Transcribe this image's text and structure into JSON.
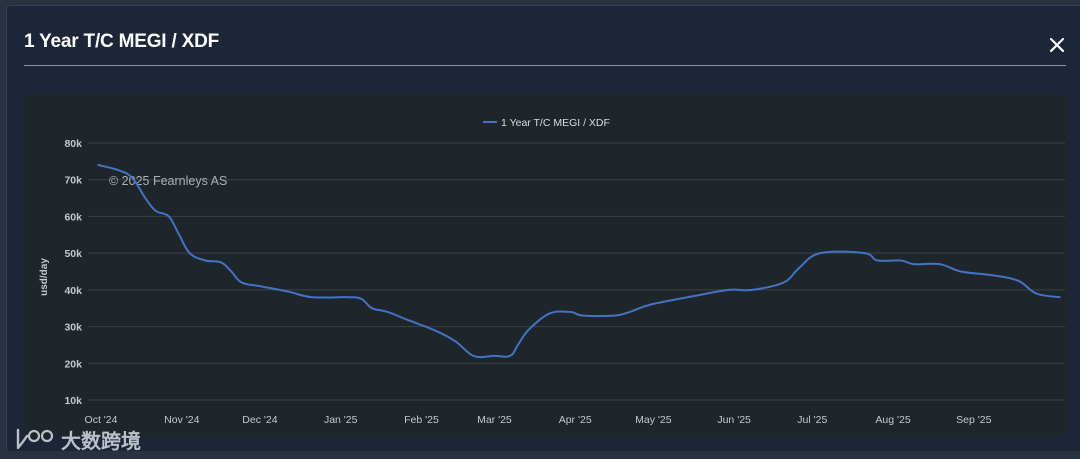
{
  "dialog": {
    "title": "1 Year T/C MEGI / XDF",
    "close_icon": "close-icon"
  },
  "watermark": {
    "brand_text": "大数跨境"
  },
  "colors": {
    "series": "#4472c4",
    "grid": "#3b4148",
    "axis_text": "#c3c8cf",
    "panel_bg": "#1f262b"
  },
  "chart_data": {
    "type": "line",
    "title": "",
    "ylabel": "usd/day",
    "xlabel": "",
    "credit": "© 2025 Fearnleys AS",
    "ylim": [
      10000,
      80000
    ],
    "yticks": [
      10000,
      20000,
      30000,
      40000,
      50000,
      60000,
      70000,
      80000
    ],
    "ytick_labels": [
      "10k",
      "20k",
      "30k",
      "40k",
      "50k",
      "60k",
      "70k",
      "80k"
    ],
    "x_range": [
      "2024-09-26",
      "2025-10-06"
    ],
    "xticks": [
      "2024-10-01",
      "2024-11-01",
      "2024-12-01",
      "2025-01-01",
      "2025-02-01",
      "2025-03-01",
      "2025-04-01",
      "2025-05-01",
      "2025-06-01",
      "2025-07-01",
      "2025-08-01",
      "2025-09-01"
    ],
    "xtick_labels": [
      "Oct '24",
      "Nov '24",
      "Dec '24",
      "Jan '25",
      "Feb '25",
      "Mar '25",
      "Apr '25",
      "May '25",
      "Jun '25",
      "Jul '25",
      "Aug '25",
      "Sep '25"
    ],
    "grid": true,
    "legend": "top-center",
    "series": [
      {
        "name": "1 Year T/C MEGI / XDF",
        "color": "#4472c4",
        "points": [
          [
            "2024-09-30",
            74000
          ],
          [
            "2024-10-08",
            72500
          ],
          [
            "2024-10-13",
            70500
          ],
          [
            "2024-10-18",
            65000
          ],
          [
            "2024-10-22",
            61500
          ],
          [
            "2024-10-27",
            60000
          ],
          [
            "2024-10-31",
            55000
          ],
          [
            "2024-11-04",
            50000
          ],
          [
            "2024-11-10",
            48000
          ],
          [
            "2024-11-16",
            47500
          ],
          [
            "2024-11-20",
            45000
          ],
          [
            "2024-11-24",
            42000
          ],
          [
            "2024-12-01",
            41000
          ],
          [
            "2024-12-12",
            39500
          ],
          [
            "2024-12-21",
            38000
          ],
          [
            "2025-01-04",
            38000
          ],
          [
            "2025-01-09",
            37500
          ],
          [
            "2025-01-13",
            35000
          ],
          [
            "2025-01-19",
            34000
          ],
          [
            "2025-01-26",
            32000
          ],
          [
            "2025-02-06",
            29000
          ],
          [
            "2025-02-14",
            26000
          ],
          [
            "2025-02-21",
            22000
          ],
          [
            "2025-03-01",
            22000
          ],
          [
            "2025-03-07",
            22000
          ],
          [
            "2025-03-10",
            25000
          ],
          [
            "2025-03-14",
            29000
          ],
          [
            "2025-03-22",
            33500
          ],
          [
            "2025-03-30",
            34000
          ],
          [
            "2025-04-04",
            33000
          ],
          [
            "2025-04-16",
            33000
          ],
          [
            "2025-04-22",
            34000
          ],
          [
            "2025-04-30",
            36000
          ],
          [
            "2025-05-18",
            38500
          ],
          [
            "2025-05-30",
            40000
          ],
          [
            "2025-06-08",
            40000
          ],
          [
            "2025-06-20",
            42000
          ],
          [
            "2025-06-26",
            46000
          ],
          [
            "2025-07-04",
            50000
          ],
          [
            "2025-07-21",
            50000
          ],
          [
            "2025-07-26",
            48000
          ],
          [
            "2025-08-04",
            48000
          ],
          [
            "2025-08-09",
            47000
          ],
          [
            "2025-08-19",
            47000
          ],
          [
            "2025-08-27",
            45000
          ],
          [
            "2025-09-08",
            44000
          ],
          [
            "2025-09-18",
            42500
          ],
          [
            "2025-09-25",
            39000
          ],
          [
            "2025-10-04",
            38000
          ]
        ]
      }
    ]
  }
}
